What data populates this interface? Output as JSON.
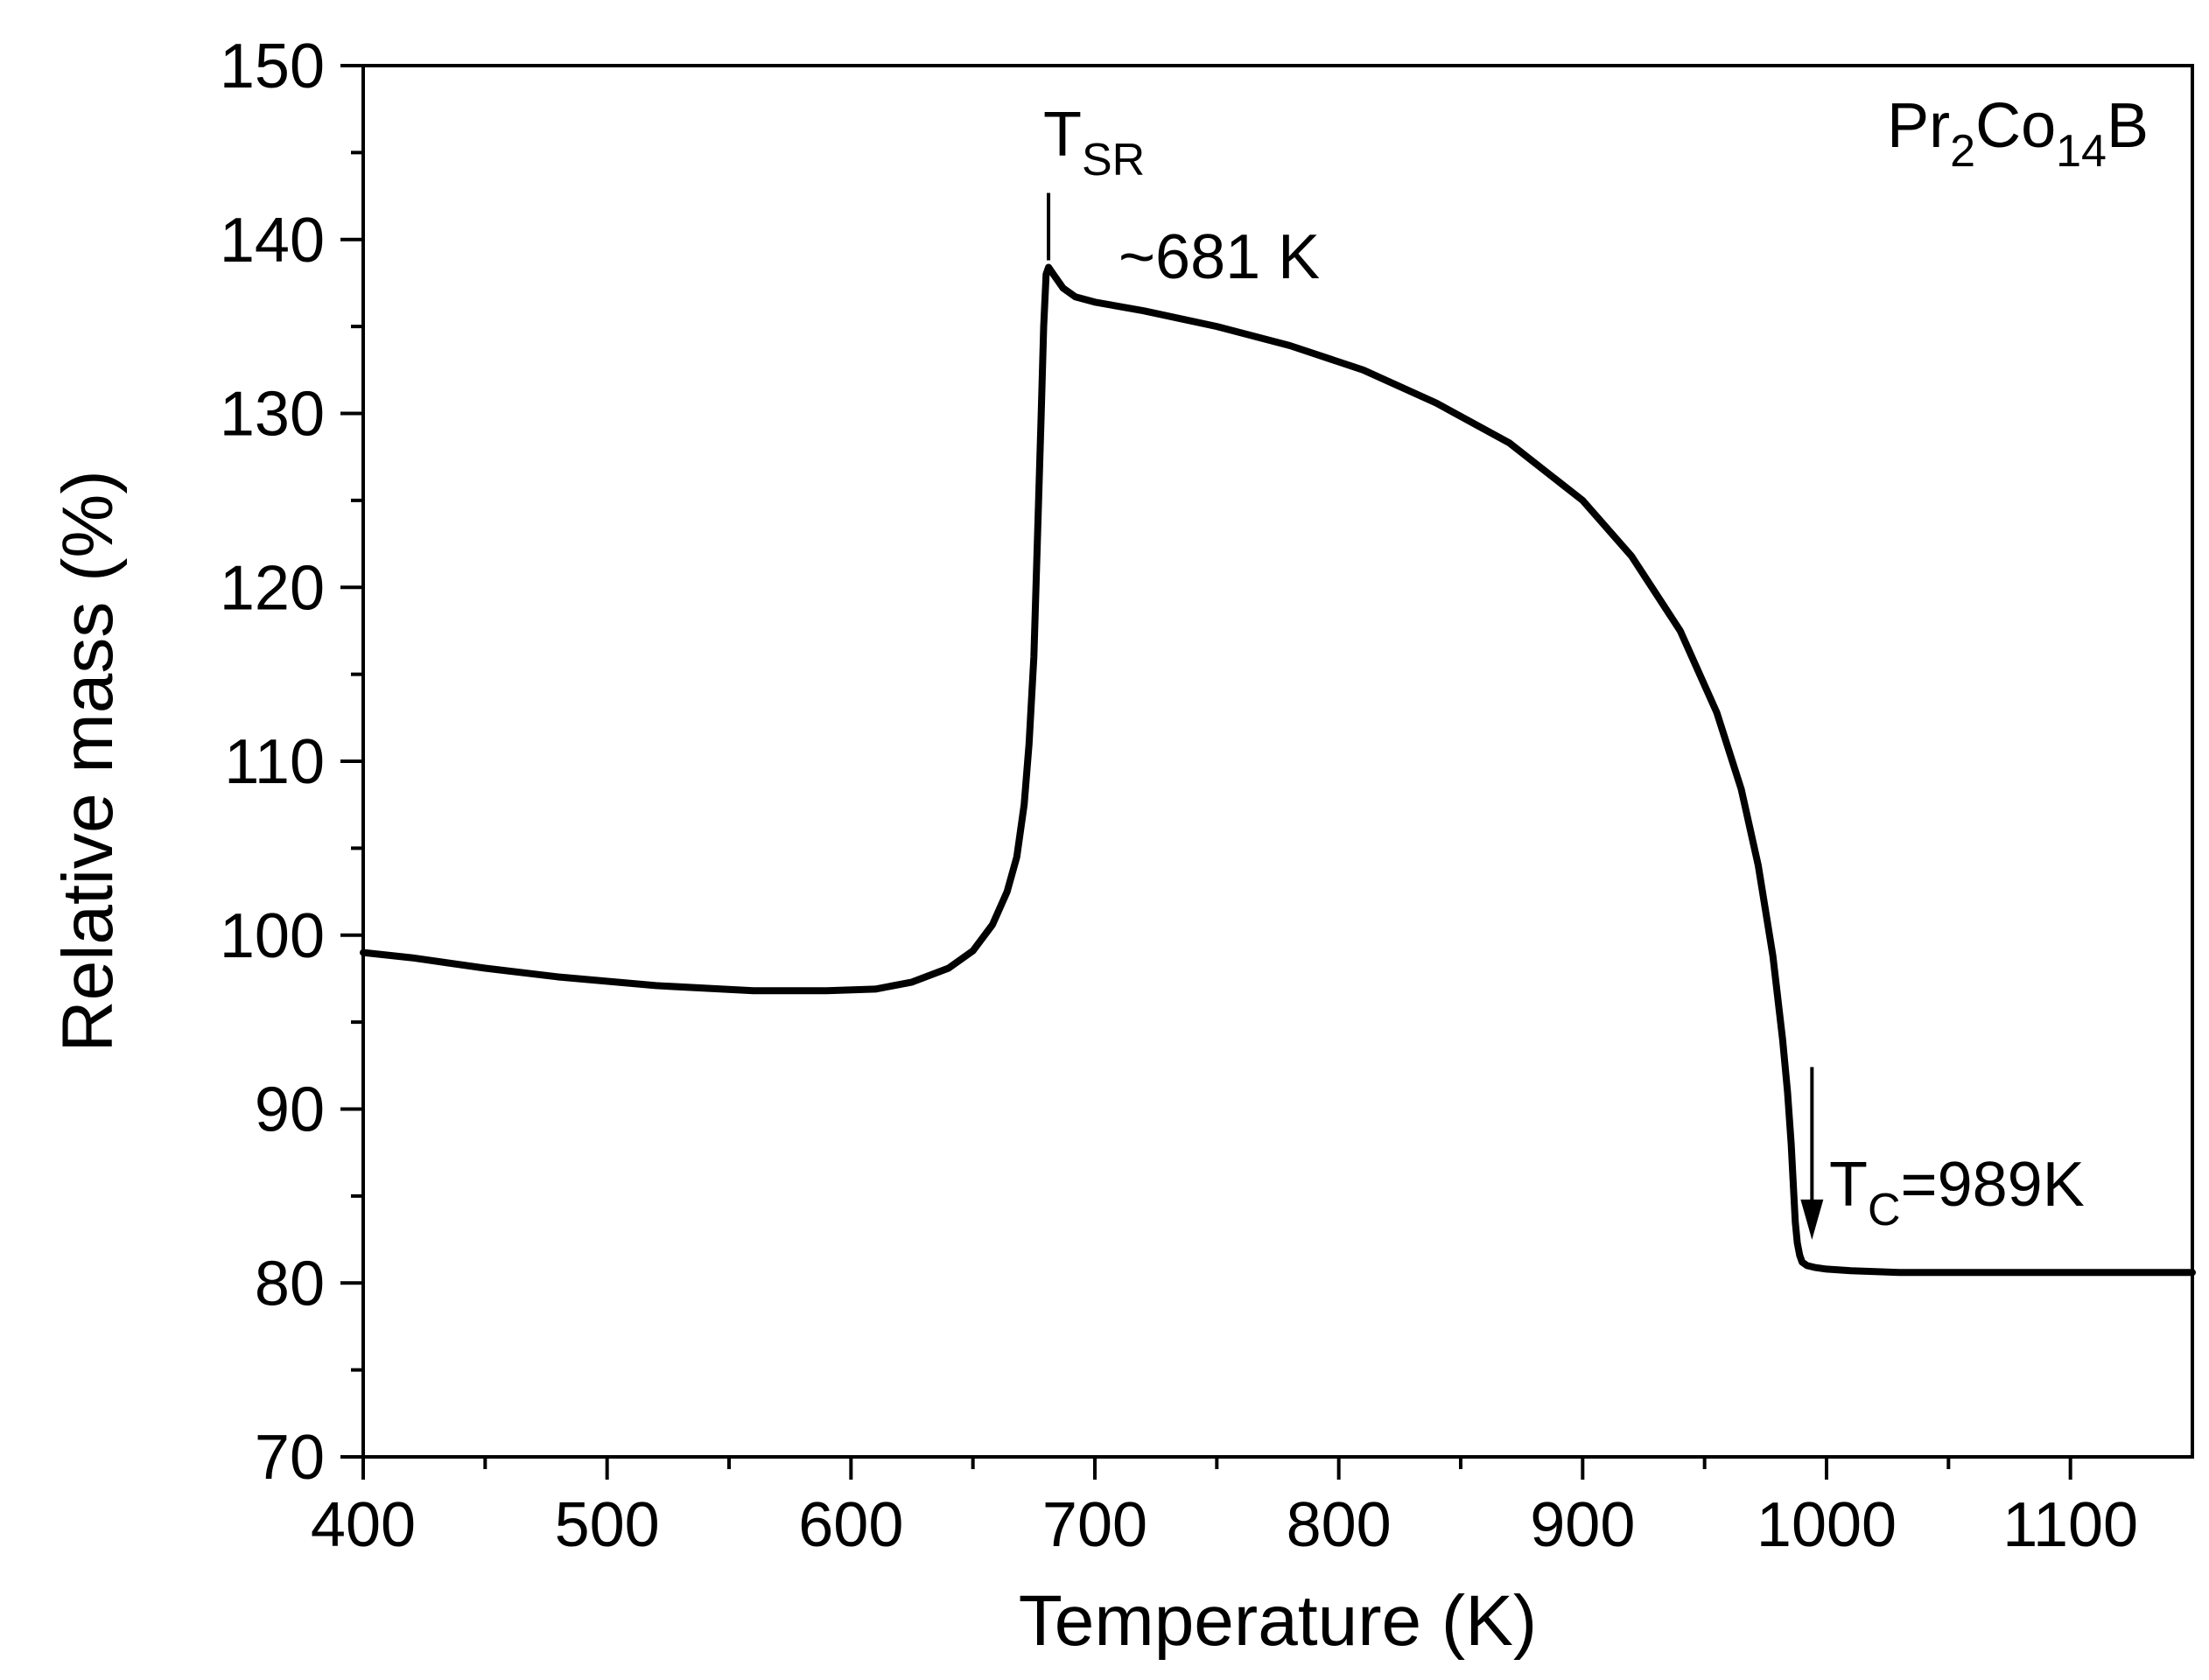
{
  "chart_data": {
    "type": "line",
    "xlabel": "Temperature (K)",
    "ylabel": "Relative mass (%)",
    "xlim": [
      400,
      1150
    ],
    "ylim": [
      70,
      150
    ],
    "xticks": [
      400,
      500,
      600,
      700,
      800,
      900,
      1000,
      1100
    ],
    "yticks": [
      70,
      80,
      90,
      100,
      110,
      120,
      130,
      140,
      150
    ],
    "x_minor_step": 50,
    "y_minor_step": 5,
    "series": [
      {
        "name": "Pr2Co14B",
        "color": "#000000",
        "x": [
          400,
          420,
          450,
          480,
          520,
          560,
          590,
          610,
          625,
          640,
          650,
          658,
          664,
          668,
          671,
          673,
          675,
          676.5,
          678,
          679,
          680,
          681,
          682,
          684,
          687,
          692,
          700,
          720,
          750,
          780,
          810,
          840,
          870,
          900,
          920,
          940,
          955,
          965,
          972,
          978,
          982,
          984,
          985.5,
          986.5,
          987.2,
          988,
          989,
          990,
          992,
          995,
          1000,
          1010,
          1030,
          1060,
          1100,
          1150
        ],
        "y": [
          99,
          98.7,
          98.1,
          97.6,
          97.1,
          96.8,
          96.8,
          96.9,
          97.3,
          98.1,
          99.1,
          100.6,
          102.5,
          104.5,
          107.5,
          111,
          116,
          123,
          130,
          135,
          138,
          138.4,
          138.2,
          137.8,
          137.2,
          136.7,
          136.4,
          135.9,
          135,
          133.9,
          132.5,
          130.6,
          128.3,
          125,
          121.8,
          117.5,
          112.8,
          108.4,
          104,
          98.8,
          94,
          91,
          88,
          85.3,
          83.5,
          82.3,
          81.6,
          81.2,
          81,
          80.9,
          80.8,
          80.7,
          80.6,
          80.6,
          80.6,
          80.6
        ]
      }
    ],
    "annotations": {
      "compound": {
        "base1": "Pr",
        "sub1": "2",
        "base2": "Co",
        "sub2": "14",
        "base3": "B"
      },
      "tsr": {
        "main": "T",
        "sub": "SR",
        "value_text": "~681 K",
        "x": 681,
        "y": 138.4
      },
      "tc": {
        "main": "T",
        "sub": "C",
        "value_text": "=989K",
        "x": 989,
        "y_top": 90,
        "y_tip": 84.5
      }
    }
  }
}
